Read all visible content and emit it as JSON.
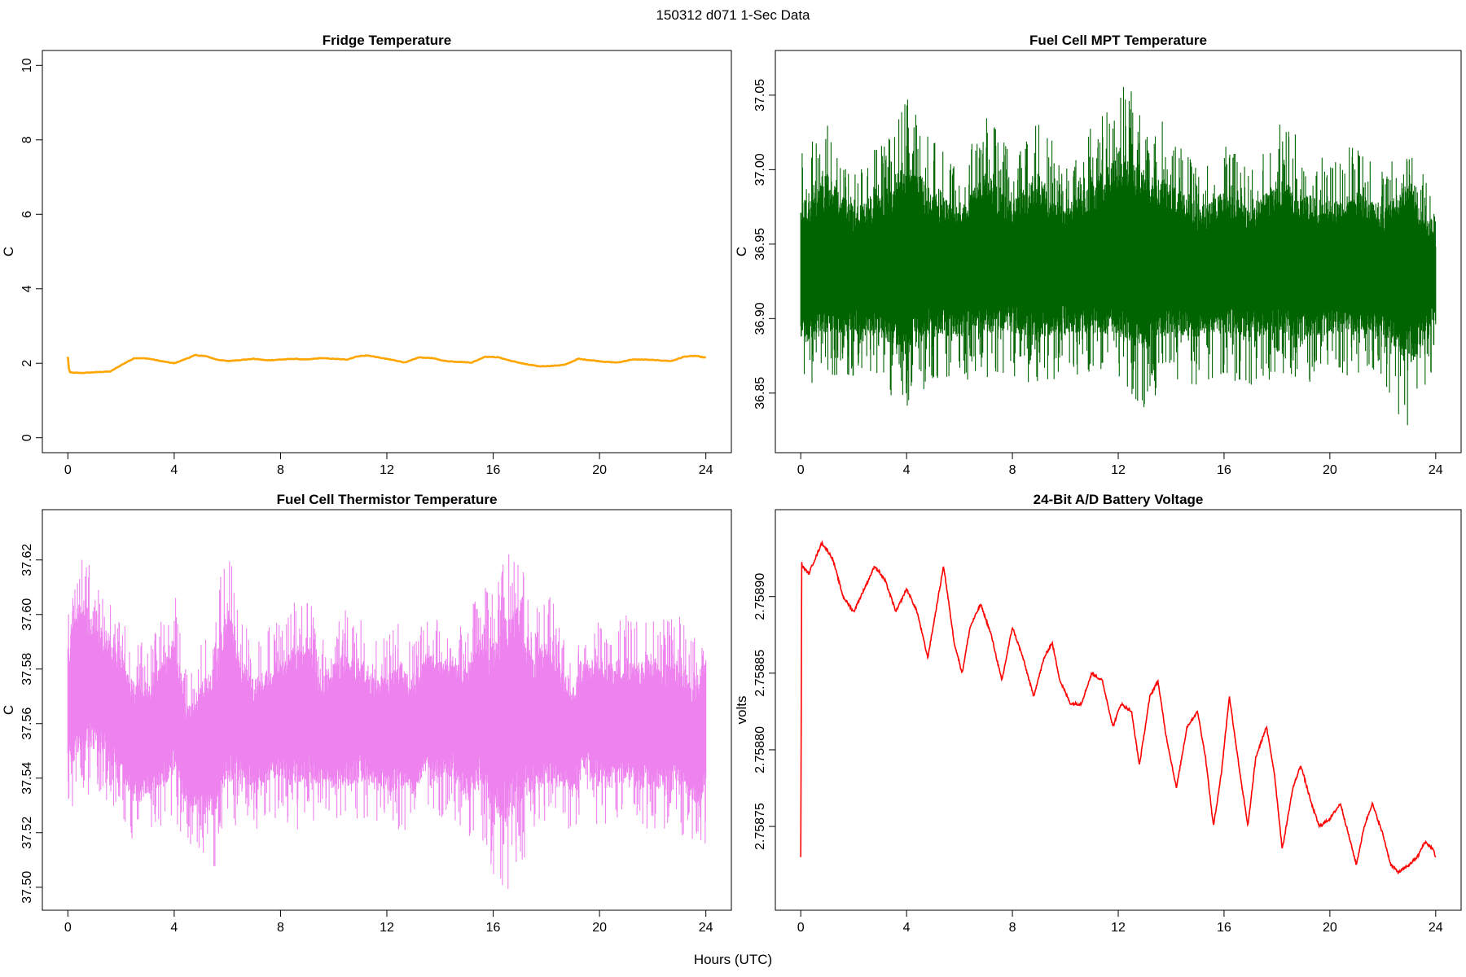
{
  "page": {
    "title": "150312   d071   1-Sec Data",
    "xlabel": "Hours (UTC)"
  },
  "chart_data": [
    {
      "type": "line",
      "title": "Fridge Temperature",
      "xlabel": "",
      "ylabel": "C",
      "xlim": [
        0,
        24
      ],
      "ylim": [
        0,
        10
      ],
      "xticks": [
        0,
        4,
        8,
        12,
        16,
        20,
        24
      ],
      "yticks": [
        0,
        2,
        4,
        6,
        8,
        10
      ],
      "ytick_labels": [
        "0",
        "2",
        "4",
        "6",
        "8",
        "10"
      ],
      "color": "#ffa500",
      "series": [
        {
          "x": [
            0,
            0.05,
            0.1,
            0.5,
            1.0,
            1.6,
            2.0,
            2.5,
            3.0,
            3.5,
            4.0,
            4.3,
            4.8,
            5.2,
            5.6,
            6.0,
            6.5,
            7.0,
            7.5,
            8.0,
            8.5,
            9.0,
            9.5,
            10.0,
            10.5,
            10.9,
            11.3,
            11.8,
            12.3,
            12.7,
            13.2,
            13.7,
            14.2,
            14.7,
            15.2,
            15.7,
            16.2,
            16.7,
            17.2,
            17.7,
            18.2,
            18.7,
            19.2,
            19.7,
            20.2,
            20.7,
            21.2,
            21.7,
            22.2,
            22.7,
            23.2,
            23.6,
            24.0
          ],
          "y": [
            2.17,
            1.78,
            1.75,
            1.74,
            1.76,
            1.78,
            1.95,
            2.14,
            2.13,
            2.06,
            2.0,
            2.08,
            2.22,
            2.19,
            2.1,
            2.06,
            2.09,
            2.12,
            2.08,
            2.1,
            2.12,
            2.1,
            2.14,
            2.12,
            2.1,
            2.19,
            2.21,
            2.14,
            2.08,
            2.02,
            2.16,
            2.14,
            2.06,
            2.04,
            2.02,
            2.18,
            2.16,
            2.06,
            1.98,
            1.92,
            1.93,
            1.96,
            2.12,
            2.08,
            2.04,
            2.02,
            2.1,
            2.1,
            2.08,
            2.06,
            2.18,
            2.2,
            2.15
          ]
        }
      ]
    },
    {
      "type": "line",
      "title": "Fuel Cell MPT Temperature",
      "xlabel": "",
      "ylabel": "C",
      "xlim": [
        0,
        24
      ],
      "ylim": [
        36.82,
        37.07
      ],
      "xticks": [
        0,
        4,
        8,
        12,
        16,
        20,
        24
      ],
      "yticks": [
        36.85,
        36.9,
        36.95,
        37.0,
        37.05
      ],
      "ytick_labels": [
        "36.85",
        "36.90",
        "36.95",
        "37.00",
        "37.05"
      ],
      "color": "#006400",
      "series": [
        {
          "x": [
            0,
            1,
            2,
            3,
            4,
            5,
            6,
            7,
            8,
            9,
            10,
            11,
            12,
            13,
            14,
            15,
            16,
            17,
            18,
            19,
            20,
            21,
            22,
            23,
            24
          ],
          "y_mean": [
            36.93,
            36.935,
            36.935,
            36.935,
            36.935,
            36.935,
            36.935,
            36.935,
            36.935,
            36.935,
            36.935,
            36.935,
            36.935,
            36.935,
            36.935,
            36.935,
            36.935,
            36.935,
            36.935,
            36.935,
            36.935,
            36.935,
            36.935,
            36.935,
            36.935
          ],
          "y_max": [
            37.01,
            37.04,
            37.0,
            37.02,
            37.055,
            37.02,
            37.0,
            37.04,
            37.01,
            37.04,
            37.0,
            37.03,
            37.065,
            37.04,
            37.03,
            37.0,
            37.02,
            37.0,
            37.035,
            37.02,
            37.005,
            37.02,
            37.0,
            37.03,
            36.97
          ],
          "y_min": [
            36.85,
            36.86,
            36.86,
            36.855,
            36.835,
            36.86,
            36.855,
            36.86,
            36.86,
            36.855,
            36.86,
            36.86,
            36.855,
            36.84,
            36.86,
            36.855,
            36.86,
            36.855,
            36.86,
            36.855,
            36.86,
            36.86,
            36.855,
            36.822,
            36.87
          ]
        }
      ]
    },
    {
      "type": "line",
      "title": "Fuel Cell Thermistor Temperature",
      "xlabel": "",
      "ylabel": "C",
      "xlim": [
        0,
        24
      ],
      "ylim": [
        37.497,
        37.633
      ],
      "xticks": [
        0,
        4,
        8,
        12,
        16,
        20,
        24
      ],
      "yticks": [
        37.5,
        37.52,
        37.54,
        37.56,
        37.58,
        37.6,
        37.62
      ],
      "ytick_labels": [
        "37.50",
        "37.52",
        "37.54",
        "37.56",
        "37.58",
        "37.60",
        "37.62"
      ],
      "color": "#ee82ee",
      "series": [
        {
          "x": [
            0,
            0.5,
            1.0,
            1.5,
            2.0,
            2.5,
            3.0,
            3.5,
            4.0,
            4.5,
            5.0,
            5.5,
            6.0,
            6.5,
            7.0,
            7.5,
            8.0,
            8.5,
            9.0,
            9.5,
            10.0,
            10.5,
            11.0,
            11.5,
            12.0,
            12.5,
            13.0,
            13.5,
            14.0,
            14.5,
            15.0,
            15.5,
            16.0,
            16.5,
            17.0,
            17.5,
            18.0,
            18.5,
            19.0,
            19.5,
            20.0,
            20.5,
            21.0,
            21.5,
            22.0,
            22.5,
            23.0,
            23.5,
            24.0
          ],
          "y_max": [
            37.605,
            37.628,
            37.612,
            37.61,
            37.6,
            37.59,
            37.59,
            37.598,
            37.61,
            37.58,
            37.59,
            37.6,
            37.628,
            37.6,
            37.59,
            37.595,
            37.6,
            37.605,
            37.61,
            37.59,
            37.598,
            37.602,
            37.6,
            37.59,
            37.592,
            37.598,
            37.59,
            37.6,
            37.598,
            37.6,
            37.598,
            37.61,
            37.61,
            37.626,
            37.628,
            37.6,
            37.61,
            37.6,
            37.588,
            37.598,
            37.6,
            37.598,
            37.6,
            37.598,
            37.6,
            37.598,
            37.6,
            37.59,
            37.602
          ],
          "y_min": [
            37.528,
            37.53,
            37.535,
            37.53,
            37.525,
            37.515,
            37.52,
            37.52,
            37.525,
            37.515,
            37.51,
            37.507,
            37.515,
            37.525,
            37.52,
            37.525,
            37.525,
            37.52,
            37.52,
            37.525,
            37.52,
            37.52,
            37.525,
            37.525,
            37.52,
            37.52,
            37.52,
            37.53,
            37.525,
            37.525,
            37.515,
            37.52,
            37.505,
            37.498,
            37.505,
            37.52,
            37.52,
            37.52,
            37.52,
            37.53,
            37.52,
            37.52,
            37.525,
            37.52,
            37.52,
            37.52,
            37.52,
            37.515,
            37.515
          ]
        }
      ]
    },
    {
      "type": "line",
      "title": "24-Bit A/D Battery Voltage",
      "xlabel": "",
      "ylabel": "volts",
      "xlim": [
        0,
        24
      ],
      "ylim": [
        2.758705,
        2.758947
      ],
      "xticks": [
        0,
        4,
        8,
        12,
        16,
        20,
        24
      ],
      "yticks": [
        2.75875,
        2.7588,
        2.75885,
        2.7589
      ],
      "ytick_labels": [
        "2.75875",
        "2.75880",
        "2.75885",
        "2.75890"
      ],
      "color": "#ff0000",
      "series": [
        {
          "x": [
            0,
            0.02,
            0.05,
            0.3,
            0.8,
            1.2,
            1.6,
            2.0,
            2.4,
            2.8,
            3.2,
            3.6,
            4.0,
            4.4,
            4.8,
            5.1,
            5.4,
            5.8,
            6.1,
            6.4,
            6.8,
            7.2,
            7.6,
            8.0,
            8.4,
            8.8,
            9.2,
            9.5,
            9.8,
            10.2,
            10.6,
            11.0,
            11.4,
            11.8,
            12.1,
            12.5,
            12.8,
            13.2,
            13.5,
            13.8,
            14.2,
            14.6,
            15.0,
            15.3,
            15.6,
            15.9,
            16.2,
            16.6,
            16.9,
            17.2,
            17.6,
            17.9,
            18.2,
            18.6,
            18.9,
            19.3,
            19.6,
            20.0,
            20.4,
            20.7,
            21.0,
            21.3,
            21.6,
            22.0,
            22.3,
            22.6,
            23.0,
            23.3,
            23.6,
            23.9,
            24.0
          ],
          "y": [
            2.75873,
            2.758925,
            2.75892,
            2.758915,
            2.758935,
            2.758925,
            2.7589,
            2.75889,
            2.758905,
            2.75892,
            2.75891,
            2.75889,
            2.758905,
            2.75889,
            2.75886,
            2.75889,
            2.75892,
            2.75887,
            2.75885,
            2.75888,
            2.758895,
            2.758875,
            2.758845,
            2.75888,
            2.75886,
            2.758835,
            2.75886,
            2.75887,
            2.758845,
            2.75883,
            2.75883,
            2.75885,
            2.758845,
            2.758815,
            2.75883,
            2.758825,
            2.75879,
            2.758835,
            2.758845,
            2.75881,
            2.758775,
            2.758815,
            2.758825,
            2.758795,
            2.75875,
            2.758785,
            2.758835,
            2.758785,
            2.75875,
            2.758795,
            2.758815,
            2.758785,
            2.758735,
            2.758775,
            2.75879,
            2.758765,
            2.75875,
            2.758755,
            2.758765,
            2.758745,
            2.758725,
            2.75875,
            2.758765,
            2.758745,
            2.758725,
            2.75872,
            2.758725,
            2.75873,
            2.75874,
            2.758735,
            2.75873
          ]
        }
      ]
    }
  ]
}
